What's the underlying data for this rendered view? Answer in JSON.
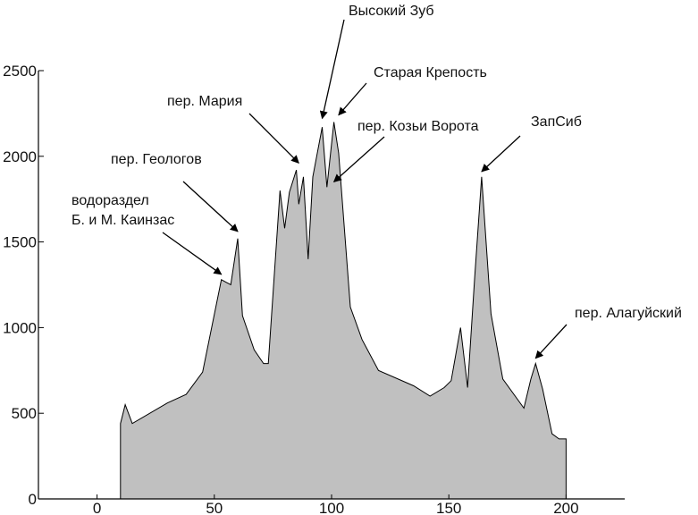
{
  "chart_data": {
    "type": "area",
    "title": "",
    "xlabel": "",
    "ylabel": "",
    "xlim": [
      -25,
      225
    ],
    "ylim": [
      0,
      2500
    ],
    "x_ticks": [
      0,
      50,
      100,
      150,
      200
    ],
    "y_ticks": [
      0,
      500,
      1000,
      1500,
      2000,
      2500
    ],
    "grid": false,
    "legend": "none",
    "fill_color": "#c0c0c0",
    "series": [
      {
        "x": [
          0,
          10,
          10,
          12,
          15,
          30,
          38,
          45,
          53,
          57,
          60,
          62,
          67,
          71,
          73,
          78,
          80,
          82,
          85,
          86,
          88,
          90,
          92,
          96,
          98,
          101,
          103,
          108,
          113,
          120,
          135,
          142,
          148,
          151,
          155,
          158,
          161,
          164,
          168,
          173,
          182,
          185,
          187,
          190,
          194,
          197,
          200
        ],
        "y": [
          0,
          0,
          440,
          550,
          440,
          560,
          610,
          740,
          1280,
          1250,
          1520,
          1070,
          870,
          790,
          790,
          1800,
          1580,
          1790,
          1920,
          1720,
          1880,
          1400,
          1880,
          2170,
          1820,
          2200,
          2020,
          1120,
          930,
          750,
          660,
          600,
          650,
          690,
          1000,
          650,
          1290,
          1880,
          1080,
          700,
          530,
          700,
          790,
          640,
          380,
          350,
          350
        ]
      }
    ],
    "annotations": [
      {
        "text": "Высокий Зуб",
        "x": 96,
        "y": 2200
      },
      {
        "text": "Старая Крепость",
        "x": 103,
        "y": 2220
      },
      {
        "text": "пер. Мария",
        "x": 86,
        "y": 1940
      },
      {
        "text": "пер. Козьи Ворота",
        "x": 101,
        "y": 1830
      },
      {
        "text": "ЗапСиб",
        "x": 164,
        "y": 1890
      },
      {
        "text": "пер. Геологов",
        "x": 60,
        "y": 1540
      },
      {
        "text": "водораздел",
        "x": 53,
        "y": 1290
      },
      {
        "text": "Б. и М. Каинзас",
        "x": 53,
        "y": 1290
      },
      {
        "text": "пер. Алагуйский",
        "x": 187,
        "y": 800
      }
    ]
  }
}
